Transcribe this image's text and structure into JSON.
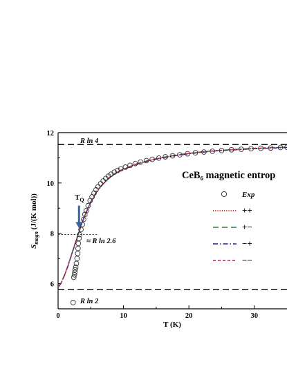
{
  "chart_data": {
    "type": "line",
    "title": "CeB₆ magnetic entrop",
    "xlabel": "T (K)",
    "ylabel_main": "S",
    "ylabel_sub": "magn",
    "ylabel_rest": " (J/(K mol))",
    "xlim": [
      0,
      35
    ],
    "ylim": [
      5,
      12
    ],
    "x_ticks": [
      0,
      10,
      20,
      30
    ],
    "y_ticks": [
      6,
      8,
      10,
      12
    ],
    "grid": false,
    "legend_position": "right",
    "reference_lines": [
      {
        "label": "R ln 4",
        "y": 11.53,
        "color": "#000000"
      },
      {
        "label": "R ln 2",
        "y": 5.76,
        "color": "#000000"
      }
    ],
    "marker_line": {
      "label": "≈ R ln 2.6",
      "y": 7.95,
      "x_end": 6
    },
    "arrow_annotation": {
      "label_main": "T",
      "label_sub": "Q",
      "x": 3.2,
      "y_tip": 8.2,
      "y_tail": 9.1,
      "color": "#3465a4"
    },
    "series": [
      {
        "name": "Exp",
        "kind": "scatter",
        "marker": "open-circle",
        "points": [
          [
            2.3,
            5.25
          ],
          [
            2.4,
            6.25
          ],
          [
            2.5,
            6.35
          ],
          [
            2.55,
            6.45
          ],
          [
            2.6,
            6.55
          ],
          [
            2.7,
            6.65
          ],
          [
            2.8,
            6.8
          ],
          [
            2.9,
            7.0
          ],
          [
            3.0,
            7.2
          ],
          [
            3.05,
            7.4
          ],
          [
            3.1,
            7.6
          ],
          [
            3.2,
            7.8
          ],
          [
            3.3,
            7.95
          ],
          [
            3.5,
            8.15
          ],
          [
            3.7,
            8.35
          ],
          [
            3.9,
            8.55
          ],
          [
            4.1,
            8.75
          ],
          [
            4.3,
            8.9
          ],
          [
            4.6,
            9.1
          ],
          [
            4.9,
            9.3
          ],
          [
            5.2,
            9.45
          ],
          [
            5.5,
            9.6
          ],
          [
            5.8,
            9.73
          ],
          [
            6.1,
            9.85
          ],
          [
            6.5,
            9.97
          ],
          [
            6.9,
            10.08
          ],
          [
            7.3,
            10.18
          ],
          [
            7.7,
            10.27
          ],
          [
            8.1,
            10.35
          ],
          [
            8.6,
            10.43
          ],
          [
            9.1,
            10.5
          ],
          [
            9.6,
            10.56
          ],
          [
            10.3,
            10.63
          ],
          [
            11.0,
            10.7
          ],
          [
            11.8,
            10.77
          ],
          [
            12.6,
            10.83
          ],
          [
            13.5,
            10.89
          ],
          [
            14.4,
            10.94
          ],
          [
            15.4,
            10.99
          ],
          [
            16.4,
            11.04
          ],
          [
            17.5,
            11.08
          ],
          [
            18.6,
            11.12
          ],
          [
            19.8,
            11.16
          ],
          [
            21.0,
            11.2
          ],
          [
            22.3,
            11.23
          ],
          [
            23.6,
            11.26
          ],
          [
            25.0,
            11.29
          ],
          [
            26.5,
            11.32
          ],
          [
            28.0,
            11.34
          ],
          [
            29.5,
            11.36
          ],
          [
            31.0,
            11.38
          ],
          [
            32.5,
            11.39
          ],
          [
            34.0,
            11.41
          ],
          [
            35.0,
            11.42
          ]
        ]
      },
      {
        "name": "++",
        "kind": "line",
        "color": "#cc0000",
        "dash": "1.2,2",
        "points": [
          [
            0.0,
            5.85
          ],
          [
            0.5,
            6.05
          ],
          [
            1.0,
            6.35
          ],
          [
            1.5,
            6.7
          ],
          [
            2.0,
            7.1
          ],
          [
            2.5,
            7.5
          ],
          [
            3.0,
            7.9
          ],
          [
            3.5,
            8.3
          ],
          [
            4.0,
            8.65
          ],
          [
            5.0,
            9.25
          ],
          [
            6.0,
            9.7
          ],
          [
            7.0,
            10.0
          ],
          [
            8.0,
            10.25
          ],
          [
            9.0,
            10.42
          ],
          [
            10.0,
            10.55
          ],
          [
            12.0,
            10.75
          ],
          [
            14.0,
            10.9
          ],
          [
            16.0,
            11.01
          ],
          [
            18.0,
            11.1
          ],
          [
            20.0,
            11.17
          ],
          [
            22.0,
            11.23
          ],
          [
            24.0,
            11.28
          ],
          [
            26.0,
            11.31
          ],
          [
            28.0,
            11.34
          ],
          [
            30.0,
            11.37
          ],
          [
            32.0,
            11.39
          ],
          [
            35.0,
            11.42
          ]
        ]
      },
      {
        "name": "+−",
        "kind": "line",
        "color": "#2e7d32",
        "dash": "8,5",
        "points": [
          [
            0.0,
            5.85
          ],
          [
            0.5,
            6.06
          ],
          [
            1.0,
            6.36
          ],
          [
            1.5,
            6.72
          ],
          [
            2.0,
            7.12
          ],
          [
            2.5,
            7.52
          ],
          [
            3.0,
            7.92
          ],
          [
            3.5,
            8.31
          ],
          [
            4.0,
            8.66
          ],
          [
            5.0,
            9.26
          ],
          [
            6.0,
            9.71
          ],
          [
            7.0,
            10.01
          ],
          [
            8.0,
            10.26
          ],
          [
            9.0,
            10.43
          ],
          [
            10.0,
            10.56
          ],
          [
            12.0,
            10.76
          ],
          [
            14.0,
            10.91
          ],
          [
            16.0,
            11.02
          ],
          [
            18.0,
            11.11
          ],
          [
            20.0,
            11.18
          ],
          [
            22.0,
            11.24
          ],
          [
            24.0,
            11.29
          ],
          [
            26.0,
            11.32
          ],
          [
            28.0,
            11.35
          ],
          [
            30.0,
            11.38
          ],
          [
            32.0,
            11.4
          ],
          [
            35.0,
            11.43
          ]
        ]
      },
      {
        "name": "−+",
        "kind": "line",
        "color": "#1a237e",
        "dash": "7,3,1.5,3",
        "points": [
          [
            0.0,
            5.84
          ],
          [
            0.5,
            6.04
          ],
          [
            1.0,
            6.34
          ],
          [
            1.5,
            6.69
          ],
          [
            2.0,
            7.09
          ],
          [
            2.5,
            7.49
          ],
          [
            3.0,
            7.89
          ],
          [
            3.5,
            8.29
          ],
          [
            4.0,
            8.64
          ],
          [
            5.0,
            9.24
          ],
          [
            6.0,
            9.69
          ],
          [
            7.0,
            9.99
          ],
          [
            8.0,
            10.24
          ],
          [
            9.0,
            10.41
          ],
          [
            10.0,
            10.54
          ],
          [
            12.0,
            10.74
          ],
          [
            14.0,
            10.89
          ],
          [
            16.0,
            11.0
          ],
          [
            18.0,
            11.09
          ],
          [
            20.0,
            11.16
          ],
          [
            22.0,
            11.22
          ],
          [
            24.0,
            11.27
          ],
          [
            26.0,
            11.3
          ],
          [
            28.0,
            11.33
          ],
          [
            30.0,
            11.36
          ],
          [
            32.0,
            11.38
          ],
          [
            35.0,
            11.41
          ]
        ]
      },
      {
        "name": "−−",
        "kind": "line",
        "color": "#c2185b",
        "dash": "4,3",
        "points": [
          [
            0.0,
            5.85
          ],
          [
            0.5,
            6.05
          ],
          [
            1.0,
            6.35
          ],
          [
            1.5,
            6.71
          ],
          [
            2.0,
            7.11
          ],
          [
            2.5,
            7.51
          ],
          [
            3.0,
            7.91
          ],
          [
            3.5,
            8.3
          ],
          [
            4.0,
            8.65
          ],
          [
            5.0,
            9.25
          ],
          [
            6.0,
            9.7
          ],
          [
            7.0,
            10.0
          ],
          [
            8.0,
            10.25
          ],
          [
            9.0,
            10.42
          ],
          [
            10.0,
            10.55
          ],
          [
            12.0,
            10.75
          ],
          [
            14.0,
            10.9
          ],
          [
            16.0,
            11.01
          ],
          [
            18.0,
            11.1
          ],
          [
            20.0,
            11.17
          ],
          [
            22.0,
            11.23
          ],
          [
            24.0,
            11.28
          ],
          [
            26.0,
            11.31
          ],
          [
            28.0,
            11.34
          ],
          [
            30.0,
            11.37
          ],
          [
            32.0,
            11.39
          ],
          [
            35.0,
            11.42
          ]
        ]
      }
    ]
  }
}
